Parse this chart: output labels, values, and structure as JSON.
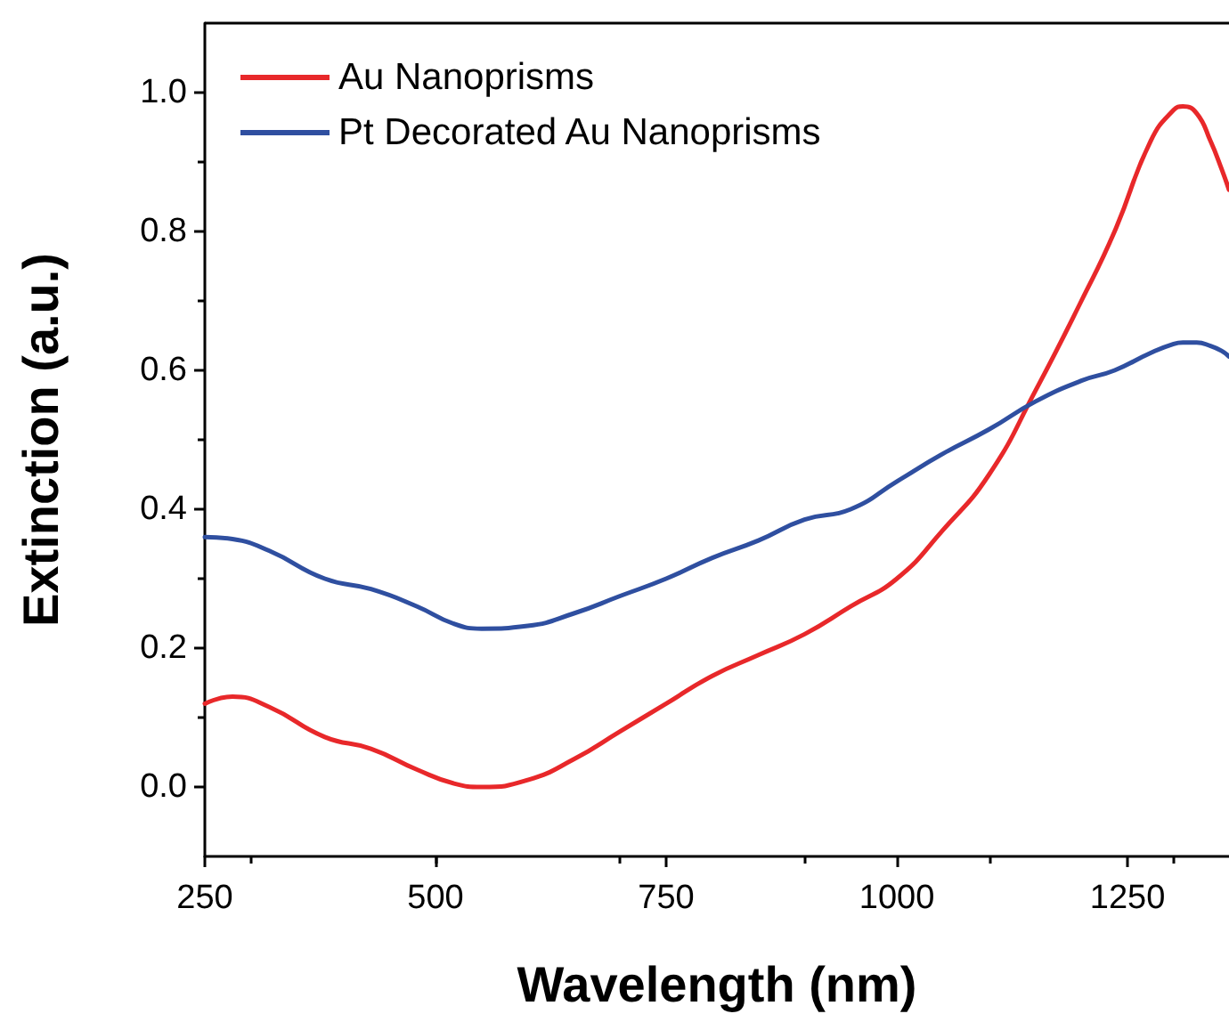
{
  "chart_data": {
    "type": "line",
    "xlabel": "Wavelength (nm)",
    "ylabel": "Extinction (a.u.)",
    "xlim": [
      250,
      1360
    ],
    "xticks": [
      250,
      500,
      750,
      1000,
      1250
    ],
    "ylim": [
      -0.1,
      1.1
    ],
    "yticks": [
      {
        "value": 0,
        "label": "0.0"
      },
      0.2,
      0.4,
      0.6,
      0.8,
      {
        "value": 1,
        "label": "1.0"
      }
    ],
    "x": [
      250,
      280,
      320,
      380,
      430,
      480,
      520,
      550,
      600,
      650,
      700,
      750,
      800,
      850,
      900,
      950,
      1000,
      1050,
      1100,
      1150,
      1200,
      1236,
      1275,
      1300,
      1310,
      1325,
      1340,
      1352,
      1360
    ],
    "series": [
      {
        "name": "Au Nanoprisms",
        "color": "#e8282a",
        "values": [
          0.12,
          0.13,
          0.115,
          0.072,
          0.055,
          0.025,
          0.005,
          0.0,
          0.01,
          0.04,
          0.08,
          0.12,
          0.16,
          0.19,
          0.22,
          0.26,
          0.3,
          0.37,
          0.45,
          0.57,
          0.7,
          0.8,
          0.93,
          0.975,
          0.98,
          0.97,
          0.93,
          0.89,
          0.86
        ]
      },
      {
        "name": "Pt Decorated Au Nanoprisms",
        "color": "#2f4fa0",
        "values": [
          0.36,
          0.357,
          0.34,
          0.3,
          0.285,
          0.26,
          0.235,
          0.228,
          0.232,
          0.25,
          0.275,
          0.3,
          0.33,
          0.355,
          0.385,
          0.4,
          0.44,
          0.48,
          0.515,
          0.555,
          0.585,
          0.6,
          0.625,
          0.638,
          0.64,
          0.64,
          0.635,
          0.628,
          0.62
        ]
      }
    ],
    "legend": "top left",
    "grid": false,
    "marker": "none",
    "line_style": "solid"
  }
}
